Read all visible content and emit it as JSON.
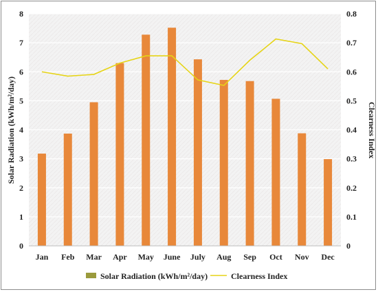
{
  "chart_data": {
    "type": "bar",
    "categories": [
      "Jan",
      "Feb",
      "Mar",
      "Apr",
      "May",
      "June",
      "July",
      "Aug",
      "Sep",
      "Oct",
      "Nov",
      "Dec"
    ],
    "series": [
      {
        "name": "Solar Radiation (kWh/m²/day)",
        "kind": "bar",
        "axis": "left",
        "values": [
          3.18,
          3.87,
          4.95,
          6.3,
          7.28,
          7.52,
          6.43,
          5.72,
          5.68,
          5.07,
          3.88,
          2.99
        ]
      },
      {
        "name": "Clearness Index",
        "kind": "line",
        "axis": "right",
        "values": [
          0.6,
          0.585,
          0.591,
          0.63,
          0.655,
          0.655,
          0.572,
          0.553,
          0.64,
          0.713,
          0.697,
          0.61
        ]
      }
    ],
    "ylabel_left": "Solar Radiation (kWh/m²/day)",
    "ylabel_right": "Clearness Index",
    "ylim_left": [
      0,
      8
    ],
    "ylim_right": [
      0,
      0.8
    ],
    "yticks_left": [
      "0",
      "1",
      "2",
      "3",
      "4",
      "5",
      "6",
      "7",
      "8"
    ],
    "yticks_right": [
      "0",
      "0.1",
      "0.2",
      "0.3",
      "0.4",
      "0.5",
      "0.6",
      "0.7",
      "0.8"
    ],
    "grid": true,
    "legend_position": "bottom",
    "colors": {
      "bar": "#e8883a",
      "bar_legend": "#9a9a3c",
      "line": "#e6d416",
      "plot_background": "#f3f3f3",
      "grid": "#ffffff"
    }
  }
}
